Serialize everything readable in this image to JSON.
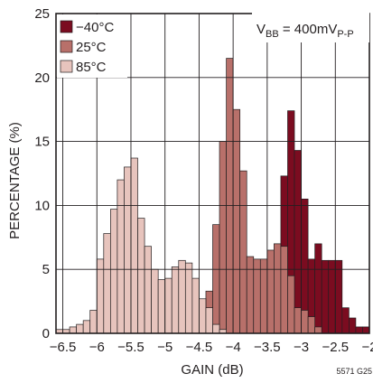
{
  "chart_data": {
    "type": "bar",
    "xlabel": "GAIN (dB)",
    "ylabel": "PERCENTAGE (%)",
    "xlim": [
      -6.6,
      -2.0
    ],
    "ylim": [
      0,
      25
    ],
    "bin_width": 0.1,
    "x_ticks": [
      -6.5,
      -6,
      -5.5,
      -5,
      -4.5,
      -4,
      -3.5,
      -3,
      -2.5,
      -2
    ],
    "x_tick_labels": [
      "−6.5",
      "−6",
      "−5.5",
      "−5",
      "−4.5",
      "−4",
      "−3.5",
      "−3",
      "−2.5",
      "−2"
    ],
    "y_ticks": [
      0,
      5,
      10,
      15,
      20,
      25
    ],
    "y_tick_labels": [
      "0",
      "5",
      "10",
      "15",
      "20",
      "25"
    ],
    "grid": true,
    "legend_position": "top-left",
    "annotation": {
      "main": "V",
      "sub1": "BB",
      "mid": " = 400mV",
      "sub2": "P-P"
    },
    "figure_id": "5571 G25",
    "series": [
      {
        "name": "−40°C",
        "color": "#7b0c20",
        "values": [
          {
            "x": -3.65,
            "y": 0.7
          },
          {
            "x": -3.55,
            "y": 2.0
          },
          {
            "x": -3.45,
            "y": 4.0
          },
          {
            "x": -3.35,
            "y": 7.0
          },
          {
            "x": -3.25,
            "y": 12.3
          },
          {
            "x": -3.15,
            "y": 17.4
          },
          {
            "x": -3.05,
            "y": 14.3
          },
          {
            "x": -2.95,
            "y": 10.5
          },
          {
            "x": -2.85,
            "y": 5.8
          },
          {
            "x": -2.75,
            "y": 7.0
          },
          {
            "x": -2.65,
            "y": 5.7
          },
          {
            "x": -2.55,
            "y": 5.7
          },
          {
            "x": -2.45,
            "y": 5.7
          },
          {
            "x": -2.35,
            "y": 2.0
          },
          {
            "x": -2.25,
            "y": 1.2
          },
          {
            "x": -2.15,
            "y": 0.5
          },
          {
            "x": -2.05,
            "y": 0.5
          }
        ]
      },
      {
        "name": "25°C",
        "color": "#b8706a",
        "values": [
          {
            "x": -4.65,
            "y": 0.3
          },
          {
            "x": -4.55,
            "y": 0.7
          },
          {
            "x": -4.45,
            "y": 1.3
          },
          {
            "x": -4.35,
            "y": 3.3
          },
          {
            "x": -4.25,
            "y": 8.5
          },
          {
            "x": -4.15,
            "y": 15.0
          },
          {
            "x": -4.05,
            "y": 21.5
          },
          {
            "x": -3.95,
            "y": 17.5
          },
          {
            "x": -3.85,
            "y": 12.7
          },
          {
            "x": -3.75,
            "y": 6.0
          },
          {
            "x": -3.65,
            "y": 5.8
          },
          {
            "x": -3.55,
            "y": 5.8
          },
          {
            "x": -3.45,
            "y": 6.5
          },
          {
            "x": -3.35,
            "y": 7.0
          },
          {
            "x": -3.25,
            "y": 6.8
          },
          {
            "x": -3.15,
            "y": 4.5
          },
          {
            "x": -3.05,
            "y": 2.0
          },
          {
            "x": -2.95,
            "y": 1.8
          },
          {
            "x": -2.85,
            "y": 1.3
          },
          {
            "x": -2.75,
            "y": 0.5
          }
        ]
      },
      {
        "name": "85°C",
        "color": "#e7c4bd",
        "values": [
          {
            "x": -6.55,
            "y": 0.3
          },
          {
            "x": -6.45,
            "y": 0.3
          },
          {
            "x": -6.35,
            "y": 0.5
          },
          {
            "x": -6.25,
            "y": 0.7
          },
          {
            "x": -6.15,
            "y": 1.0
          },
          {
            "x": -6.05,
            "y": 1.8
          },
          {
            "x": -5.95,
            "y": 5.8
          },
          {
            "x": -5.85,
            "y": 7.8
          },
          {
            "x": -5.75,
            "y": 9.7
          },
          {
            "x": -5.65,
            "y": 12.0
          },
          {
            "x": -5.55,
            "y": 13.0
          },
          {
            "x": -5.45,
            "y": 13.7
          },
          {
            "x": -5.35,
            "y": 9.0
          },
          {
            "x": -5.25,
            "y": 6.8
          },
          {
            "x": -5.15,
            "y": 5.0
          },
          {
            "x": -5.05,
            "y": 4.2
          },
          {
            "x": -4.95,
            "y": 4.3
          },
          {
            "x": -4.85,
            "y": 5.2
          },
          {
            "x": -4.75,
            "y": 5.7
          },
          {
            "x": -4.65,
            "y": 5.5
          },
          {
            "x": -4.55,
            "y": 4.3
          },
          {
            "x": -4.45,
            "y": 2.7
          },
          {
            "x": -4.35,
            "y": 2.0
          },
          {
            "x": -4.25,
            "y": 0.7
          },
          {
            "x": -4.15,
            "y": 0.3
          }
        ]
      }
    ]
  }
}
